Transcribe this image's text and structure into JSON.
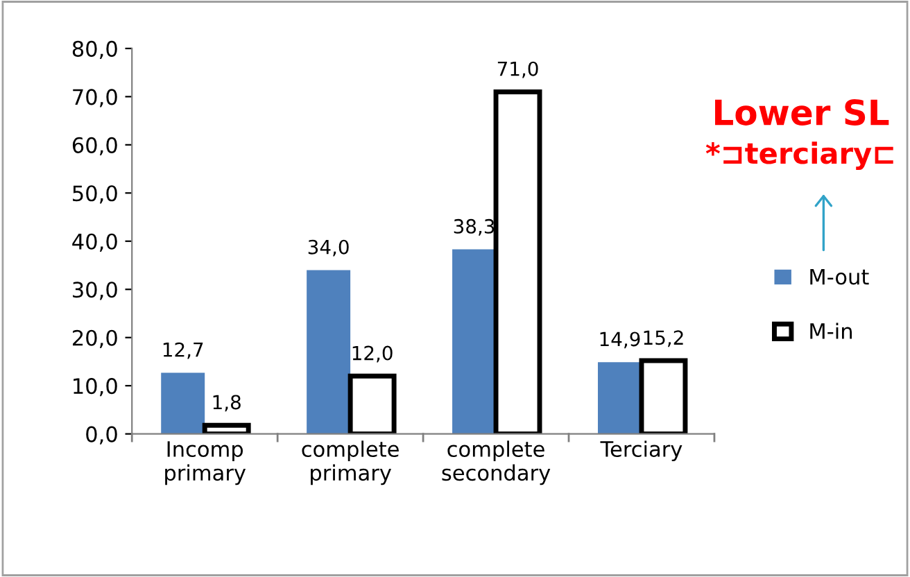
{
  "chart_data": {
    "type": "bar",
    "categories": [
      "Incomp\nprimary",
      "complete\nprimary",
      "complete\nsecondary",
      "Terciary"
    ],
    "series": [
      {
        "name": "M-out",
        "color": "#4f81bd",
        "values": [
          12.7,
          34.0,
          38.3,
          14.9
        ],
        "value_labels": [
          "12,7",
          "34,0",
          "38,3",
          "14,9"
        ]
      },
      {
        "name": "M-in",
        "color": "#ffffff",
        "values": [
          1.8,
          12.0,
          71.0,
          15.2
        ],
        "value_labels": [
          "1,8",
          "12,0",
          "71,0",
          "15,2"
        ]
      }
    ],
    "ylim": [
      0,
      80
    ],
    "yticks": [
      {
        "value": 0,
        "label": "0,0"
      },
      {
        "value": 10,
        "label": "10,0"
      },
      {
        "value": 20,
        "label": "20,0"
      },
      {
        "value": 30,
        "label": "30,0"
      },
      {
        "value": 40,
        "label": "40,0"
      },
      {
        "value": 50,
        "label": "50,0"
      },
      {
        "value": 60,
        "label": "60,0"
      },
      {
        "value": 70,
        "label": "70,0"
      },
      {
        "value": 80,
        "label": "80,0"
      }
    ],
    "grid": false,
    "legend": "right",
    "annotations": [
      "Lower SL",
      "*⊐terciary⊏"
    ]
  }
}
